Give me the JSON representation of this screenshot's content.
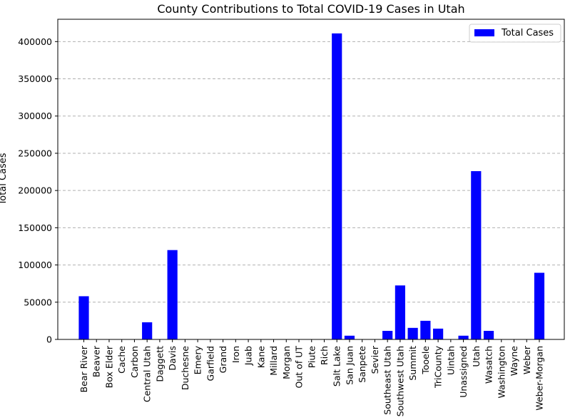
{
  "chart_data": {
    "type": "bar",
    "title": "County Contributions to Total COVID-19 Cases in Utah",
    "xlabel": "",
    "ylabel": "Total Cases",
    "ylim": [
      0,
      430000
    ],
    "yticks": [
      0,
      50000,
      100000,
      150000,
      200000,
      250000,
      300000,
      350000,
      400000
    ],
    "grid": "y, dashed",
    "legend_position": "top-right",
    "categories": [
      "Bear River",
      "Beaver",
      "Box Elder",
      "Cache",
      "Carbon",
      "Central Utah",
      "Daggett",
      "Davis",
      "Duchesne",
      "Emery",
      "Garfield",
      "Grand",
      "Iron",
      "Juab",
      "Kane",
      "Millard",
      "Morgan",
      "Out of UT",
      "Piute",
      "Rich",
      "Salt Lake",
      "San Juan",
      "Sanpete",
      "Sevier",
      "Southeast Utah",
      "Southwest Utah",
      "Summit",
      "Tooele",
      "TriCounty",
      "Uintah",
      "Unassigned",
      "Utah",
      "Wasatch",
      "Washington",
      "Wayne",
      "Weber",
      "Weber-Morgan"
    ],
    "series": [
      {
        "name": "Total Cases",
        "color": "#0000ff",
        "values": [
          58000,
          0,
          0,
          0,
          0,
          23000,
          0,
          120000,
          0,
          0,
          0,
          0,
          0,
          0,
          0,
          0,
          0,
          0,
          0,
          0,
          411000,
          5000,
          0,
          0,
          11500,
          72500,
          15500,
          25000,
          14500,
          0,
          5000,
          226000,
          11500,
          0,
          0,
          0,
          89500
        ]
      }
    ]
  }
}
